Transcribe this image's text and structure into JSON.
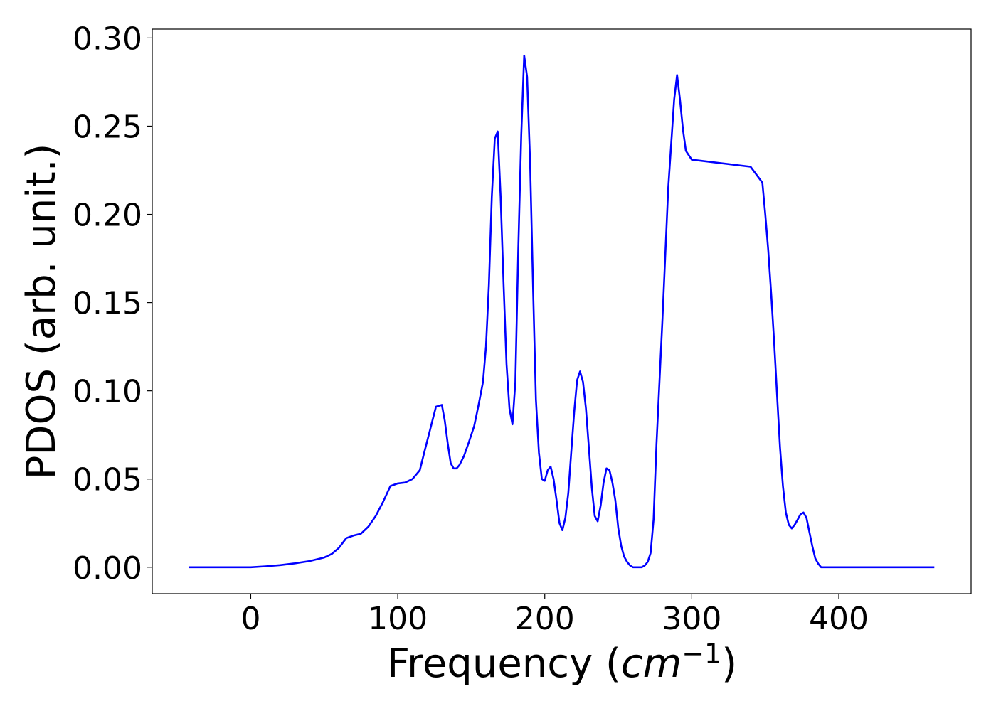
{
  "chart_data": {
    "type": "line",
    "title": "",
    "xlabel": "Frequency",
    "xlabel_unit_base": "cm",
    "xlabel_unit_exp": "−1",
    "ylabel": "PDOS (arb. unit.)",
    "xlim": [
      -67,
      490
    ],
    "ylim": [
      -0.015,
      0.305
    ],
    "xticks": [
      0,
      100,
      200,
      300,
      400
    ],
    "xtick_labels": [
      "0",
      "100",
      "200",
      "300",
      "400"
    ],
    "yticks": [
      0.0,
      0.05,
      0.1,
      0.15,
      0.2,
      0.25,
      0.3
    ],
    "ytick_labels": [
      "0.00",
      "0.05",
      "0.10",
      "0.15",
      "0.20",
      "0.25",
      "0.30"
    ],
    "grid": false,
    "legend": "none",
    "series": [
      {
        "color": "#0000ff",
        "x": [
          -42,
          0,
          10,
          20,
          30,
          40,
          50,
          55,
          60,
          65,
          70,
          75,
          80,
          85,
          90,
          95,
          100,
          105,
          110,
          115,
          118,
          122,
          126,
          130,
          132,
          134,
          136,
          138,
          140,
          142,
          145,
          148,
          152,
          155,
          158,
          160,
          162,
          164,
          166,
          168,
          170,
          172,
          174,
          176,
          178,
          180,
          182,
          184,
          186,
          188,
          190,
          192,
          194,
          196,
          198,
          200,
          202,
          204,
          206,
          208,
          210,
          212,
          214,
          216,
          218,
          220,
          222,
          224,
          226,
          228,
          230,
          232,
          234,
          236,
          238,
          240,
          242,
          244,
          246,
          248,
          250,
          252,
          254,
          256,
          258,
          260,
          262,
          264,
          266,
          268,
          270,
          272,
          274,
          276,
          280,
          284,
          288,
          290,
          292,
          294,
          296,
          300,
          340,
          348,
          350,
          352,
          354,
          356,
          358,
          360,
          362,
          364,
          366,
          368,
          370,
          372,
          374,
          376,
          378,
          380,
          382,
          384,
          386,
          388,
          390,
          392,
          394,
          396,
          398,
          400,
          402,
          404,
          406,
          408,
          410,
          412,
          414,
          416,
          418,
          420,
          422,
          424,
          426,
          428,
          430,
          432,
          435,
          440,
          465
        ],
        "y": [
          0.0,
          0.0,
          0.0005,
          0.0012,
          0.0022,
          0.0035,
          0.0055,
          0.0075,
          0.011,
          0.0165,
          0.018,
          0.019,
          0.023,
          0.029,
          0.037,
          0.046,
          0.0475,
          0.048,
          0.05,
          0.055,
          0.065,
          0.078,
          0.091,
          0.092,
          0.083,
          0.07,
          0.059,
          0.056,
          0.056,
          0.058,
          0.063,
          0.07,
          0.08,
          0.092,
          0.105,
          0.125,
          0.16,
          0.21,
          0.243,
          0.247,
          0.21,
          0.16,
          0.115,
          0.09,
          0.081,
          0.105,
          0.18,
          0.245,
          0.29,
          0.278,
          0.23,
          0.16,
          0.095,
          0.065,
          0.05,
          0.049,
          0.055,
          0.057,
          0.05,
          0.038,
          0.025,
          0.021,
          0.028,
          0.042,
          0.065,
          0.088,
          0.106,
          0.111,
          0.105,
          0.09,
          0.068,
          0.045,
          0.029,
          0.026,
          0.035,
          0.048,
          0.056,
          0.055,
          0.048,
          0.038,
          0.022,
          0.012,
          0.006,
          0.003,
          0.001,
          0.0,
          0.0,
          0.0,
          0.0,
          0.001,
          0.003,
          0.008,
          0.027,
          0.07,
          0.14,
          0.215,
          0.265,
          0.279,
          0.265,
          0.248,
          0.236,
          0.231,
          0.227,
          0.218,
          0.2,
          0.18,
          0.155,
          0.128,
          0.098,
          0.068,
          0.046,
          0.031,
          0.024,
          0.022,
          0.024,
          0.027,
          0.03,
          0.031,
          0.028,
          0.02,
          0.012,
          0.005,
          0.002,
          0.0,
          0.0,
          0.0,
          0.0,
          0.0,
          0.0,
          0.0,
          0.0,
          0.0,
          0.0,
          0.0,
          0.0,
          0.0,
          0.0,
          0.0,
          0.0,
          0.0,
          0.0,
          0.0,
          0.0,
          0.0,
          0.0,
          0.0,
          0.0,
          0.0,
          0.0
        ]
      }
    ]
  }
}
